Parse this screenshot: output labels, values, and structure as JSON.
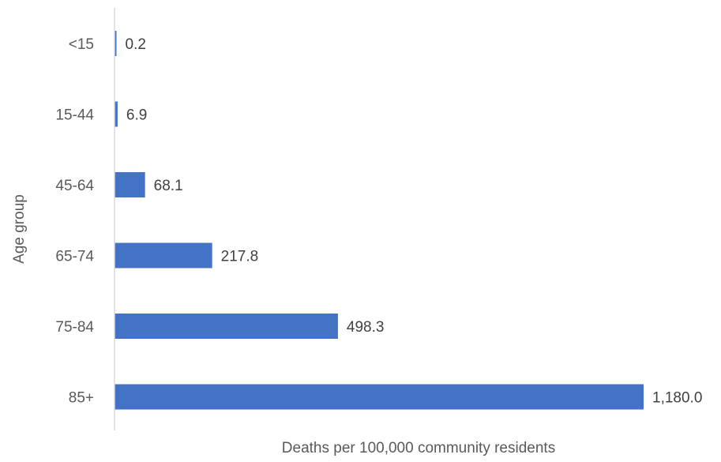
{
  "chart_data": {
    "type": "bar",
    "orientation": "horizontal",
    "categories": [
      "<15",
      "15-44",
      "45-64",
      "65-74",
      "75-84",
      "85+"
    ],
    "values": [
      0.2,
      6.9,
      68.1,
      217.8,
      498.3,
      1180.0
    ],
    "value_labels": [
      "0.2",
      "6.9",
      "68.1",
      "217.8",
      "498.3",
      "1,180.0"
    ],
    "title": "",
    "xlabel": "Deaths per 100,000 community residents",
    "ylabel": "Age group",
    "xlim": [
      0,
      1180
    ],
    "grid": false,
    "legend": "none",
    "bar_color": "#4472C4",
    "axis_color": "#D9D9D9"
  }
}
